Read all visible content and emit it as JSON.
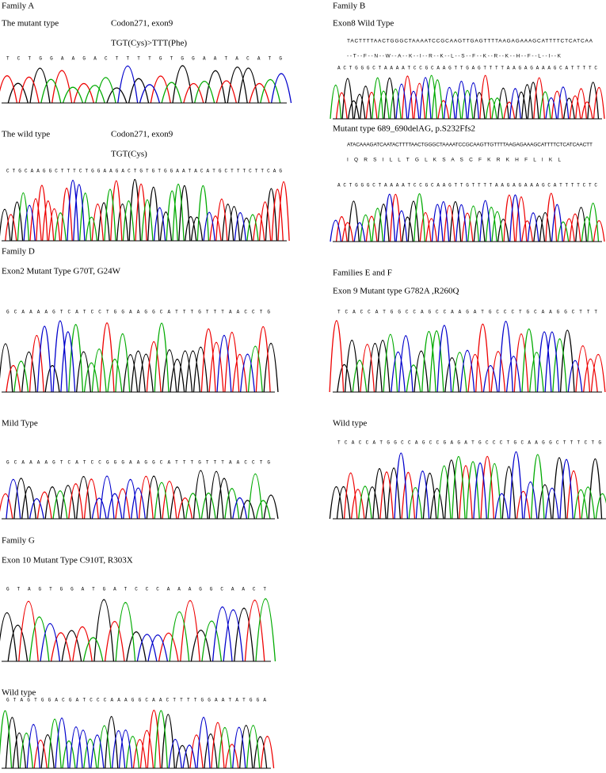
{
  "panels": [
    {
      "family": "Family A",
      "blocks": [
        {
          "label": "The mutant type",
          "info": "Codon271, exon9",
          "change": "TGT(Cys)>TTT(Phe)",
          "bases": "TCTGGAAGACTTTTGTGGAATACATG"
        },
        {
          "label": "The wild type",
          "info": "Codon271, exon9",
          "change": "TGT(Cys)",
          "bases": "CTGCAAGGCTTTCTGGAAGACTGTGTGGAATACATGCTTTCTTCAG"
        }
      ]
    },
    {
      "family": "Family B",
      "blocks": [
        {
          "label": "Exon8    Wild Type",
          "sequence": "TACTTTTAACTGGGCTAAAATCCGCAAGTTGAGTTTTAAGAGAAAGCATTTTCTCATCAA",
          "protein": "--T--F--N--W--A--K--I--R--K--L--S--F--K--R--K--H--F--L--I--K",
          "bases": "ACTGGGCTAAAATCCGCAAGTTGAGTTTTAAGAGAAAGCATTTTC"
        },
        {
          "label": "Mutant type    689_690delAG, p.S232Ffs2",
          "sequence": "ATACAAAGATCAATACTTTTAACTGGGCTAAAATCCGCAAGTTGTTTTAAGAGAAAGCATTTTCTCATCAACTT",
          "protein": "I  Q  R  S  I  L  L  T  G  L  K  S  A  S  C  F  K  R  K  H  F  L  I  K  L",
          "bases": "ACTGGGCTAAAATCCGCAAGTTGTTTTAAGAGAAAGCATTTTCTC"
        }
      ]
    },
    {
      "family": "Family D",
      "blocks": [
        {
          "label": "Exon2    Mutant Type G70T, G24W",
          "bases": "GCAAAAGTCATCCTGGAAGGCATTTGTTTAACCTG"
        },
        {
          "label": "Mild Type",
          "bases": "GCAAAAGTCATCCGGGAAGGCATTTGTTTAACCTG"
        }
      ]
    },
    {
      "family": "Families E and F",
      "blocks": [
        {
          "label": "Exon 9 Mutant type G782A ,R260Q",
          "bases": "TCACCATGGCCAGCCAAGATGCCCTGCAAGGCTTT"
        },
        {
          "label": "Wild type",
          "bases": "TCACCATGGCCAGCCGAGATGCCCTGCAAGGCTTTCTG"
        }
      ]
    },
    {
      "family": "Family G",
      "blocks": [
        {
          "label": "Exon 10    Mutant Type    C910T, R303X",
          "bases": "GTAGTGGATGATCCCAAAGGCAACT"
        },
        {
          "label": "Wild type",
          "bases": "GTAGTGGACGATCCCAAAGGCAACTTTTGGAATATGGA"
        }
      ]
    }
  ]
}
